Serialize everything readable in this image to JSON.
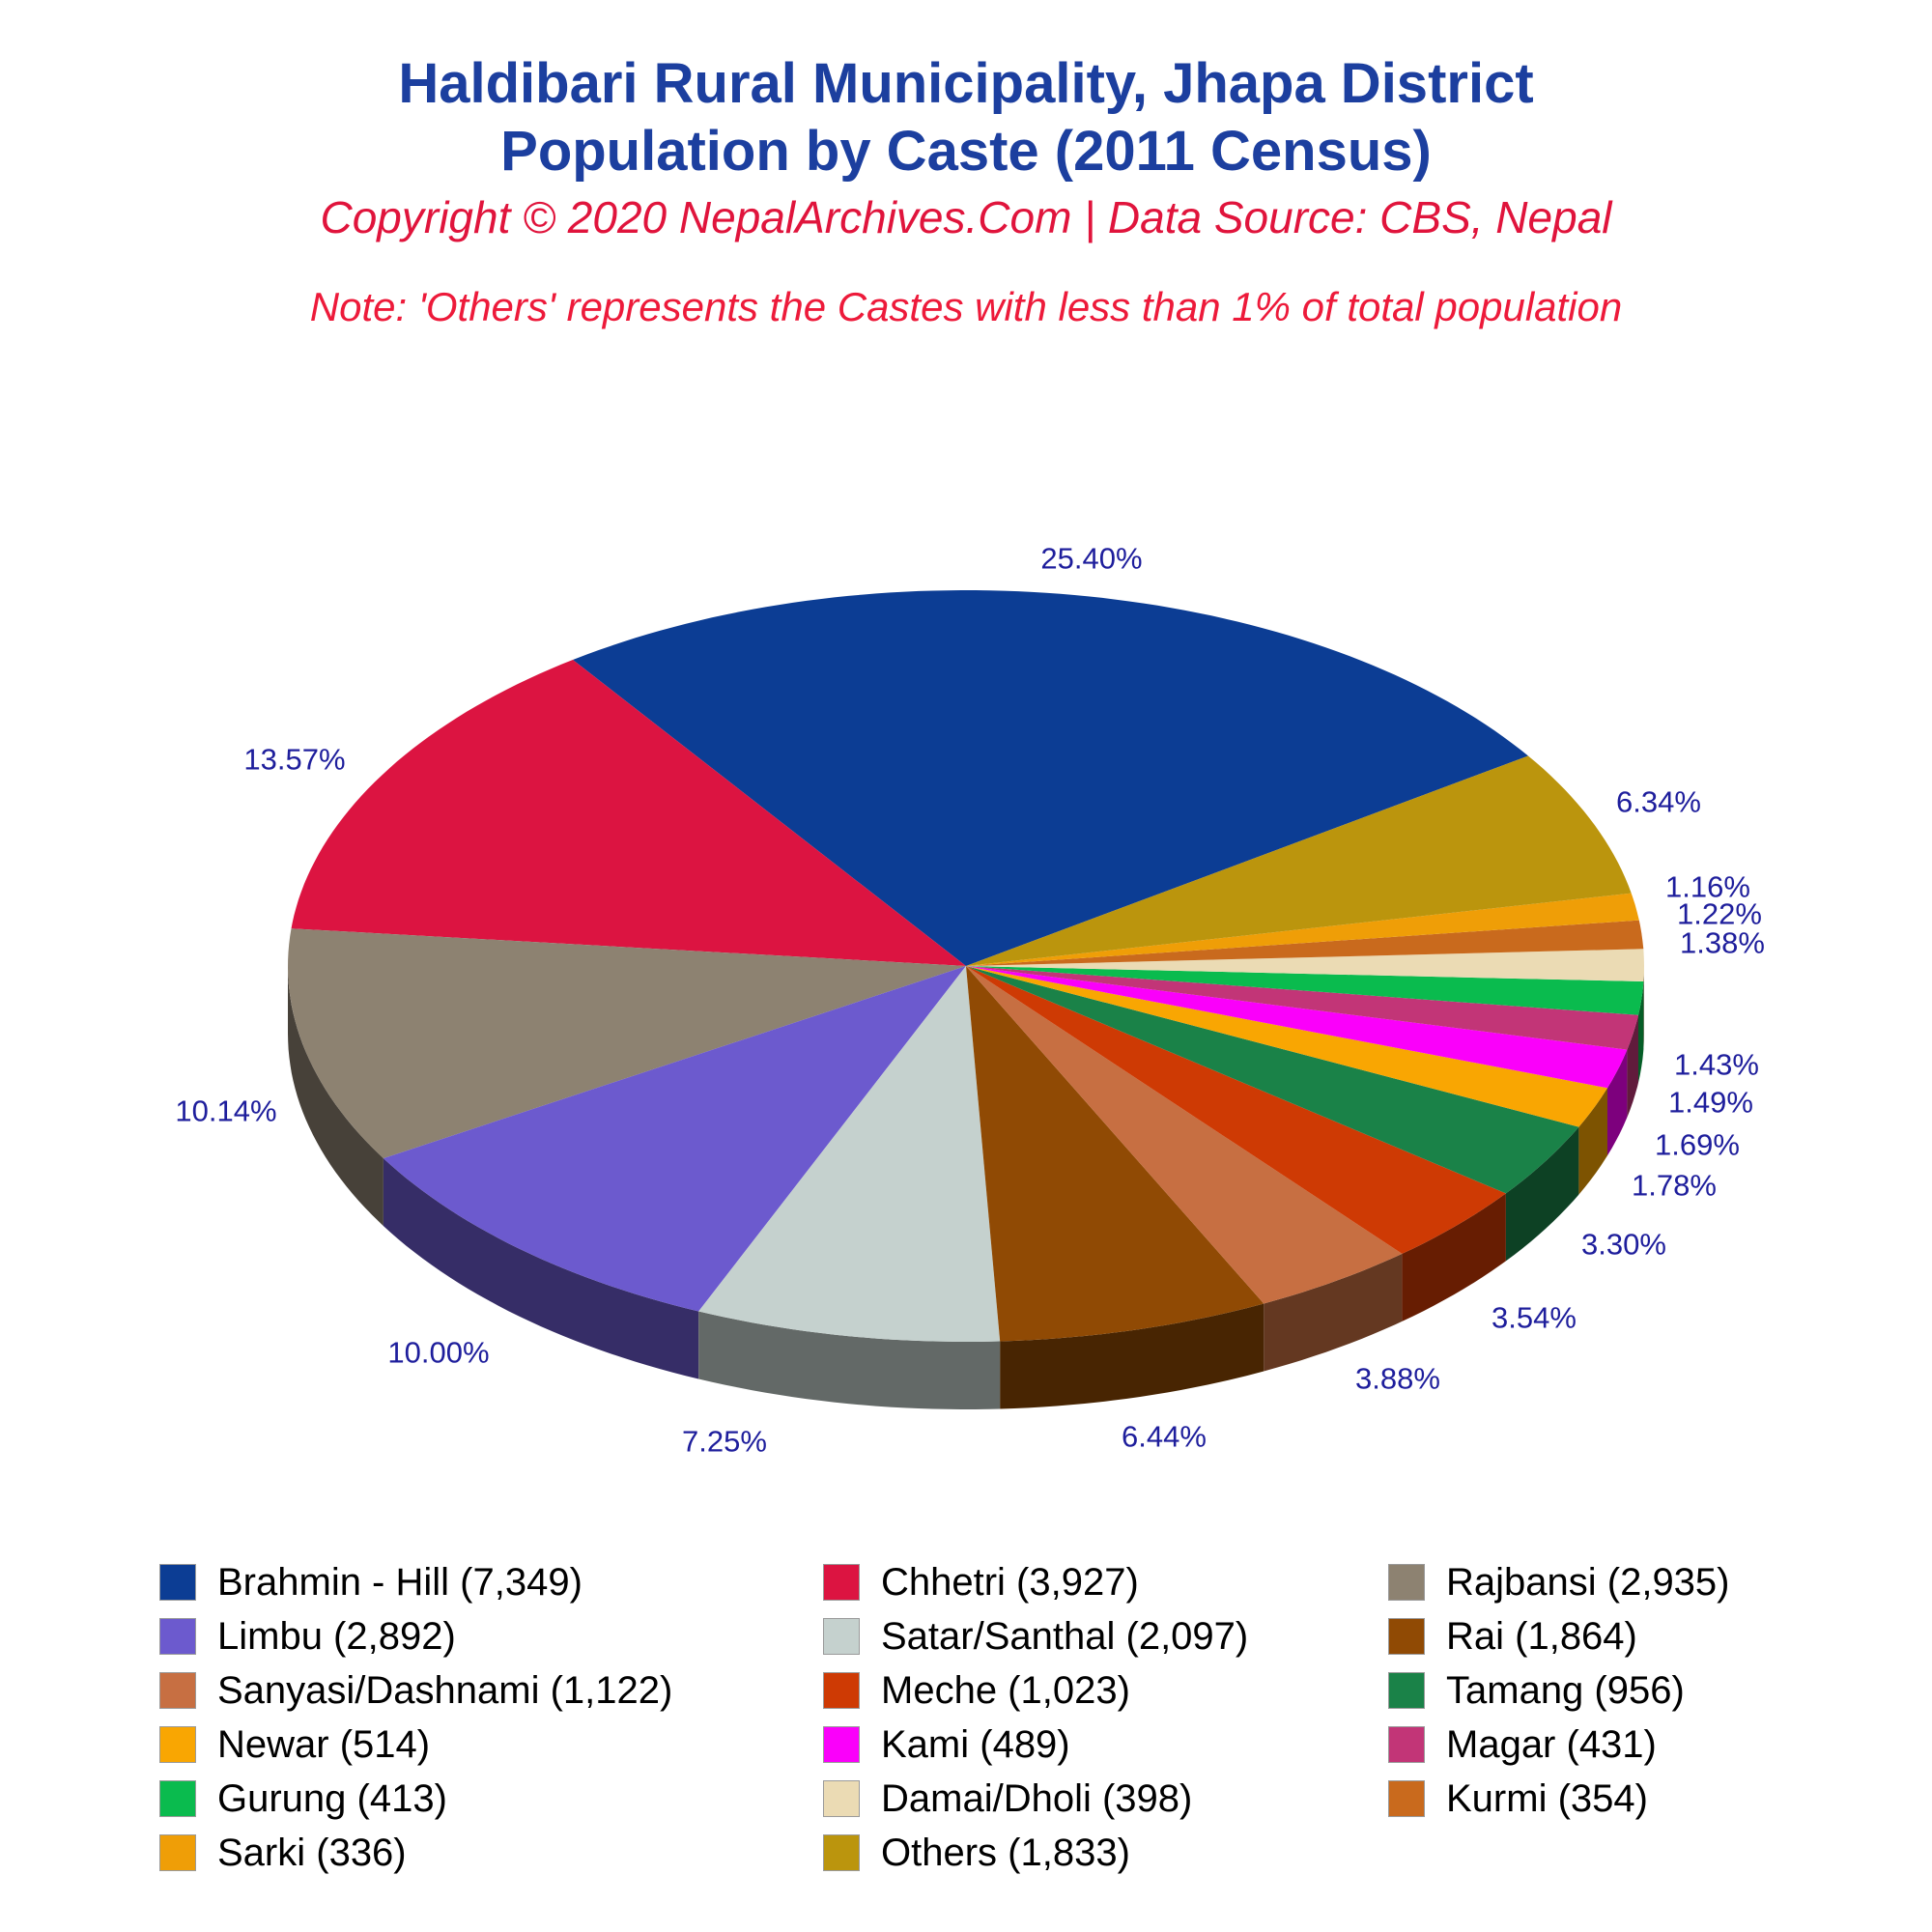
{
  "header": {
    "title_line1": "Haldibari Rural Municipality, Jhapa District",
    "title_line2": "Population by Caste (2011 Census)",
    "copyright": "Copyright © 2020 NepalArchives.Com | Data Source: CBS, Nepal",
    "note": "Note: 'Others' represents the Castes with less than 1% of total population"
  },
  "chart_data": {
    "type": "pie",
    "style": "3d",
    "title": "Haldibari Rural Municipality, Jhapa District Population by Caste (2011 Census)",
    "legend_position": "bottom",
    "slice_labels": "percent",
    "colors_note": "slice fill colors as rendered",
    "slices": [
      {
        "name": "Brahmin - Hill",
        "population": "7,349",
        "pct": "25.40%",
        "color": "#0c3d94"
      },
      {
        "name": "Chhetri",
        "population": "3,927",
        "pct": "13.57%",
        "color": "#dc1441"
      },
      {
        "name": "Rajbansi",
        "population": "2,935",
        "pct": "10.14%",
        "color": "#8d8271"
      },
      {
        "name": "Limbu",
        "population": "2,892",
        "pct": "10.00%",
        "color": "#6c5ace"
      },
      {
        "name": "Satar/Santhal",
        "population": "2,097",
        "pct": "7.25%",
        "color": "#c5d1ce"
      },
      {
        "name": "Rai",
        "population": "1,864",
        "pct": "6.44%",
        "color": "#904a04"
      },
      {
        "name": "Sanyasi/Dashnami",
        "population": "1,122",
        "pct": "3.88%",
        "color": "#c76f42"
      },
      {
        "name": "Meche",
        "population": "1,023",
        "pct": "3.54%",
        "color": "#ce3a04"
      },
      {
        "name": "Tamang",
        "population": "956",
        "pct": "3.30%",
        "color": "#1a8248"
      },
      {
        "name": "Newar",
        "population": "514",
        "pct": "1.78%",
        "color": "#f9a602"
      },
      {
        "name": "Kami",
        "population": "489",
        "pct": "1.69%",
        "color": "#fa00fa"
      },
      {
        "name": "Magar",
        "population": "431",
        "pct": "1.49%",
        "color": "#c23577"
      },
      {
        "name": "Gurung",
        "population": "413",
        "pct": "1.43%",
        "color": "#0abb4e"
      },
      {
        "name": "Damai/Dholi",
        "population": "398",
        "pct": "1.38%",
        "color": "#ebdbb4"
      },
      {
        "name": "Kurmi",
        "population": "354",
        "pct": "1.22%",
        "color": "#c96a1d"
      },
      {
        "name": "Sarki",
        "population": "336",
        "pct": "1.16%",
        "color": "#ef9e07"
      },
      {
        "name": "Others",
        "population": "1,833",
        "pct": "6.34%",
        "color": "#bb950d"
      }
    ]
  }
}
